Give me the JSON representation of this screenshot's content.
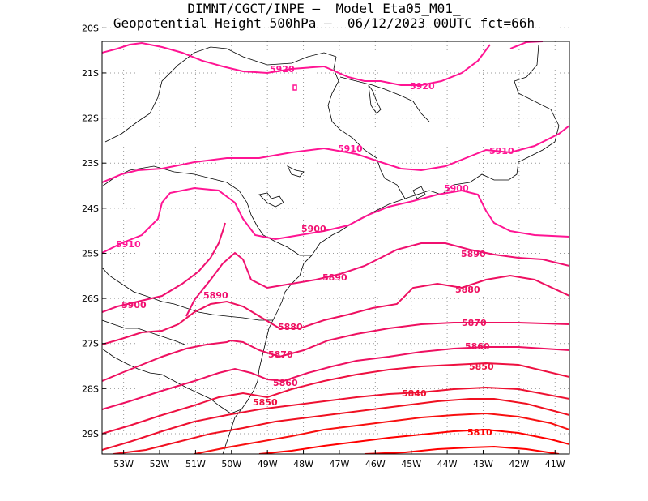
{
  "title": {
    "line1": "DIMNT/CGCT/INPE –  Model Eta05_M01_",
    "line2": "Geopotential Height 500hPa –  06/12/2023 00UTC fct=66h"
  },
  "map": {
    "lon_range": [
      -53.6,
      -40.6
    ],
    "lat_range": [
      -29.45,
      -20.3
    ],
    "lon_ticks": [
      "53W",
      "52W",
      "51W",
      "50W",
      "49W",
      "48W",
      "47W",
      "46W",
      "45W",
      "44W",
      "43W",
      "42W",
      "41W"
    ],
    "lat_ticks": [
      "20S",
      "21S",
      "22S",
      "23S",
      "24S",
      "25S",
      "26S",
      "27S",
      "28S",
      "29S"
    ],
    "grid": "dotted",
    "contour_colors": {
      "upper": "#ff1493",
      "lower": "#ff0000",
      "mid": "#ee1060"
    },
    "contours": [
      {
        "value": "5920",
        "labels": [
          "5920",
          "5920"
        ]
      },
      {
        "value": "5910",
        "labels": [
          "5910",
          "5910",
          "5910"
        ]
      },
      {
        "value": "5900",
        "labels": [
          "5900",
          "5900",
          "5900"
        ]
      },
      {
        "value": "5890",
        "labels": [
          "5890",
          "5890",
          "5890"
        ]
      },
      {
        "value": "5880",
        "labels": [
          "5880",
          "5880"
        ]
      },
      {
        "value": "5870",
        "labels": [
          "5870",
          "5870"
        ]
      },
      {
        "value": "5860",
        "labels": [
          "5860",
          "5860"
        ]
      },
      {
        "value": "5850",
        "labels": [
          "5850",
          "5850"
        ]
      },
      {
        "value": "5840",
        "labels": [
          "5840"
        ]
      },
      {
        "value": "5810",
        "labels": [
          "5810"
        ]
      }
    ]
  }
}
